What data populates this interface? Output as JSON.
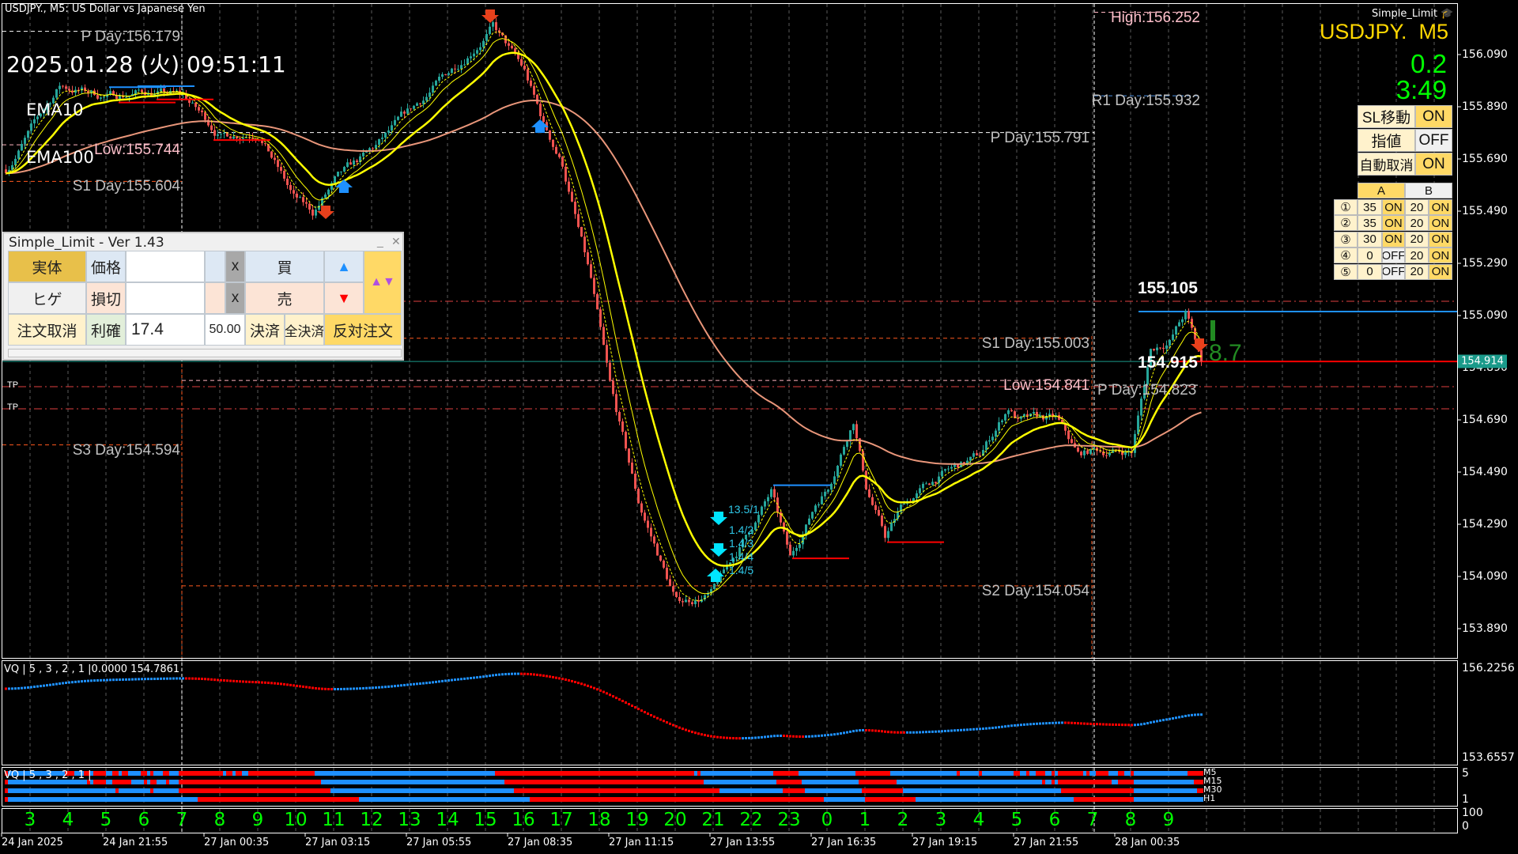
{
  "window": {
    "title": "USDJPY., M5:  US Dollar vs Japanese Yen",
    "clock": "2025.01.28 (火) 09:51:11"
  },
  "ema_labels": {
    "fast": "EMA10",
    "slow": "EMA100"
  },
  "levels": [
    {
      "text": "P Day:156.179",
      "price": 156.179
    },
    {
      "text": "Low:155.744",
      "price": 155.744
    },
    {
      "text": "S1 Day:155.604",
      "price": 155.604
    },
    {
      "text": "S3 Day:154.594",
      "price": 154.594
    },
    {
      "text": "High:156.252",
      "price": 156.252
    },
    {
      "text": "R1 Day:155.932",
      "price": 155.932
    },
    {
      "text": "P Day:155.791",
      "price": 155.791
    },
    {
      "text": "S1 Day:155.003",
      "price": 155.003
    },
    {
      "text": "Low:154.841",
      "price": 154.841
    },
    {
      "text": "S2 Day:154.054",
      "price": 154.054
    },
    {
      "text": "P Day:154.823",
      "price": 154.823
    }
  ],
  "trade": {
    "high_mark": "155.105",
    "low_mark": "154.915",
    "pips": "8.7",
    "tp_labels": [
      "TP",
      "TP"
    ],
    "entry_labels": [
      "13.5/1",
      "1.4/2",
      "1.4/3",
      "1.4/4",
      "1.4/5"
    ]
  },
  "price_axis": {
    "ticks": [
      "156.090",
      "155.890",
      "155.690",
      "155.490",
      "155.290",
      "155.090",
      "154.890",
      "154.690",
      "154.490",
      "154.290",
      "154.090",
      "153.890"
    ],
    "current": "154.914"
  },
  "panel": {
    "title": "Simple_Limit - Ver 1.43",
    "body": "実体",
    "price": "価格",
    "price_value": "",
    "clear": "x",
    "buy": "買",
    "wick": "ヒゲ",
    "stop": "損切",
    "stop_value": "",
    "sell": "売",
    "cancel": "注文取消",
    "take": "利確",
    "take_value": "17.4",
    "lots": "50.00",
    "close": "決済",
    "close_all": "全決済",
    "reverse": "反対注文"
  },
  "overlay": {
    "brand": "Simple_Limit",
    "symbol": "USDJPY.  M5",
    "spread": "0.2",
    "countdown": "3:49",
    "settings": [
      {
        "label": "SL移動",
        "value": "ON"
      },
      {
        "label": "指値",
        "value": "OFF"
      },
      {
        "label": "自動取消",
        "value": "ON"
      }
    ],
    "table": {
      "headers": [
        "A",
        "B"
      ],
      "rows": [
        {
          "n": "①",
          "a": "35",
          "a_state": "ON",
          "b": "20",
          "b_state": "ON"
        },
        {
          "n": "②",
          "a": "35",
          "a_state": "ON",
          "b": "20",
          "b_state": "ON"
        },
        {
          "n": "③",
          "a": "30",
          "a_state": "ON",
          "b": "20",
          "b_state": "ON"
        },
        {
          "n": "④",
          "a": "0",
          "a_state": "OFF",
          "b": "20",
          "b_state": "ON"
        },
        {
          "n": "⑤",
          "a": "0",
          "a_state": "OFF",
          "b": "20",
          "b_state": "ON"
        }
      ]
    }
  },
  "vq": {
    "header": "VQ | 5 , 3 , 2 , 1 |0.0000 154.7861",
    "max": "156.2256",
    "min": "153.6557"
  },
  "mtf": {
    "header": "VQ | 5 , 3 , 2 , 1 |",
    "rows": [
      "M5",
      "M15",
      "M30",
      "H1"
    ],
    "axis_top": "5",
    "axis_bottom": "1"
  },
  "hour_pane": {
    "hours": [
      "3",
      "4",
      "5",
      "6",
      "7",
      "8",
      "9",
      "10",
      "11",
      "12",
      "13",
      "14",
      "15",
      "16",
      "17",
      "18",
      "19",
      "20",
      "21",
      "22",
      "23",
      "0",
      "1",
      "2",
      "3",
      "4",
      "5",
      "6",
      "7",
      "8",
      "9"
    ],
    "axis_top": "100",
    "axis_bottom": "0"
  },
  "time_axis": [
    "24 Jan 2025",
    "24 Jan 21:55",
    "27 Jan 00:35",
    "27 Jan 03:15",
    "27 Jan 05:55",
    "27 Jan 08:35",
    "27 Jan 11:15",
    "27 Jan 13:55",
    "27 Jan 16:35",
    "27 Jan 19:15",
    "27 Jan 21:55",
    "28 Jan 00:35"
  ],
  "colors": {
    "bull": "#26a69a",
    "bear": "#ef5350",
    "ema_fast": "#ffff00",
    "ema_slow": "#e9967a",
    "vq_up": "#1e90ff",
    "vq_down": "#ff0000",
    "hour_text": "#00ff00",
    "symbol": "#ffd700",
    "timer": "#00ff00"
  },
  "chart_data": {
    "type": "candlestick",
    "symbol": "USDJPY.",
    "timeframe": "M5",
    "ylim": [
      153.78,
      156.287
    ],
    "approx_close_path": [
      [
        "24 Jan 19:20",
        155.65
      ],
      [
        "24 Jan 20:45",
        155.97
      ],
      [
        "24 Jan 22:00",
        155.93
      ],
      [
        "24 Jan 23:00",
        155.95
      ],
      [
        "27 Jan 00:00",
        155.93
      ],
      [
        "27 Jan 01:00",
        155.78
      ],
      [
        "27 Jan 02:00",
        155.8
      ],
      [
        "27 Jan 02:55",
        155.54
      ],
      [
        "27 Jan 03:25",
        155.48
      ],
      [
        "27 Jan 04:00",
        155.6
      ],
      [
        "27 Jan 05:00",
        155.72
      ],
      [
        "27 Jan 06:00",
        155.87
      ],
      [
        "27 Jan 07:00",
        156.02
      ],
      [
        "27 Jan 08:10",
        156.2
      ],
      [
        "27 Jan 09:00",
        156.02
      ],
      [
        "27 Jan 09:30",
        155.82
      ],
      [
        "27 Jan 10:00",
        155.67
      ],
      [
        "27 Jan 10:45",
        155.22
      ],
      [
        "27 Jan 11:15",
        154.81
      ],
      [
        "27 Jan 12:00",
        154.37
      ],
      [
        "27 Jan 13:00",
        153.99
      ],
      [
        "27 Jan 13:55",
        154.02
      ],
      [
        "27 Jan 14:35",
        154.18
      ],
      [
        "27 Jan 15:30",
        154.41
      ],
      [
        "27 Jan 16:00",
        154.15
      ],
      [
        "27 Jan 16:40",
        154.37
      ],
      [
        "27 Jan 17:00",
        154.44
      ],
      [
        "27 Jan 17:40",
        154.7
      ],
      [
        "27 Jan 18:00",
        154.44
      ],
      [
        "27 Jan 18:30",
        154.24
      ],
      [
        "27 Jan 19:00",
        154.37
      ],
      [
        "27 Jan 20:00",
        154.48
      ],
      [
        "27 Jan 21:00",
        154.55
      ],
      [
        "27 Jan 21:45",
        154.74
      ],
      [
        "27 Jan 22:00",
        154.69
      ],
      [
        "27 Jan 23:00",
        154.69
      ],
      [
        "27 Jan 23:35",
        154.55
      ],
      [
        "28 Jan 00:00",
        154.57
      ],
      [
        "28 Jan 01:00",
        154.57
      ],
      [
        "28 Jan 01:30",
        154.96
      ],
      [
        "28 Jan 02:00",
        155.0
      ],
      [
        "28 Jan 02:25",
        155.1
      ],
      [
        "28 Jan 02:50",
        154.914
      ]
    ]
  }
}
